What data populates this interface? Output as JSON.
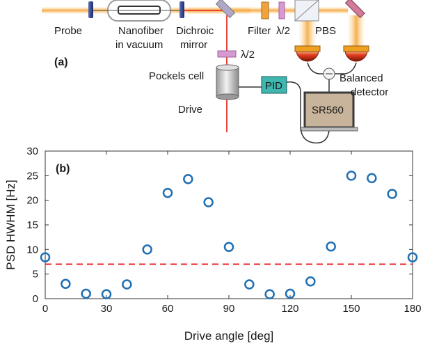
{
  "schematic": {
    "panel_label": "(a)",
    "labels": {
      "probe": "Probe",
      "nanofiber_line1": "Nanofiber",
      "nanofiber_line2": "in vacuum",
      "dichroic_line1": "Dichroic",
      "dichroic_line2": "mirror",
      "filter": "Filter",
      "half_wave_top": "λ/2",
      "pbs": "PBS",
      "half_wave_side": "λ/2",
      "pockels_cell": "Pockels cell",
      "drive": "Drive",
      "pid": "PID",
      "sr560": "SR560",
      "balanced_line1": "Balanced",
      "balanced_line2": "detector"
    },
    "colors": {
      "probe_beam": "#f5a742",
      "drive_beam": "#e8463a",
      "pid_box": "#3fb6b0",
      "sr560_box": "#c8b49a",
      "half_wave_plate": "#d79ad0",
      "filter": "#f0a33c",
      "detector": "#e03c1c"
    }
  },
  "plot": {
    "panel_label": "(b)",
    "xlabel": "Drive angle [deg]",
    "ylabel": "PSD HWHM [Hz]"
  },
  "chart_data": {
    "type": "scatter",
    "title": "",
    "xlabel": "Drive angle [deg]",
    "ylabel": "PSD HWHM [Hz]",
    "xlim": [
      0,
      180
    ],
    "ylim": [
      0,
      30
    ],
    "xticks": [
      0,
      30,
      60,
      90,
      120,
      150,
      180
    ],
    "yticks": [
      0,
      5,
      10,
      15,
      20,
      25,
      30
    ],
    "grid": false,
    "series": [
      {
        "marker": "open-circle",
        "color": "#1f6fb4",
        "x": [
          0,
          10,
          20,
          30,
          40,
          50,
          60,
          70,
          80,
          90,
          100,
          110,
          120,
          130,
          140,
          150,
          160,
          170,
          180
        ],
        "y": [
          8.4,
          3.0,
          1.0,
          0.9,
          2.9,
          10.0,
          21.5,
          24.3,
          19.6,
          10.5,
          2.9,
          0.9,
          1.0,
          3.5,
          10.6,
          25.0,
          24.5,
          21.3,
          8.4
        ]
      }
    ],
    "reference_line": {
      "y": 7.0,
      "style": "dashed",
      "color": "#e8242a"
    }
  }
}
